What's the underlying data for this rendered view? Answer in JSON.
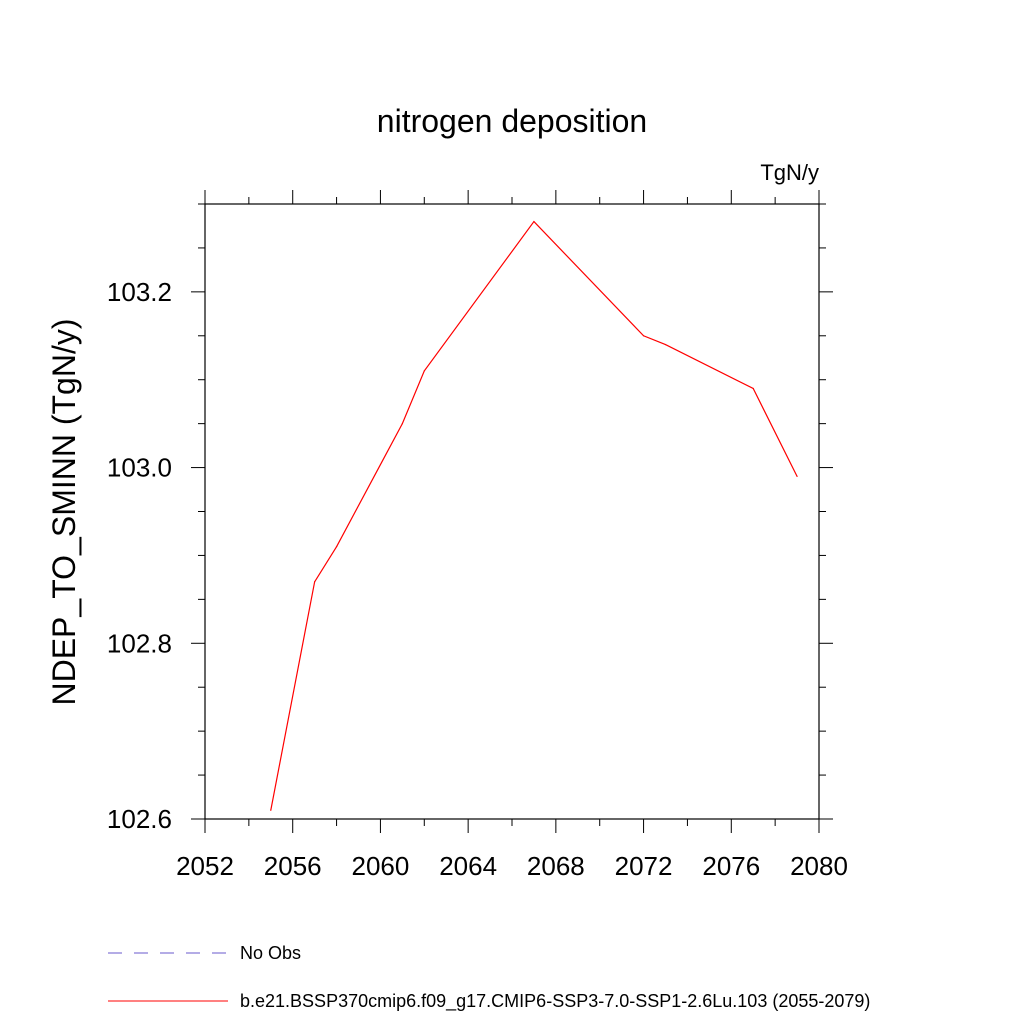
{
  "chart_data": {
    "type": "line",
    "title": "nitrogen deposition",
    "units_label": "TgN/y",
    "ylabel": "NDEP_TO_SMINN  (TgN/y)",
    "xlabel": "",
    "xlim": [
      2052,
      2080
    ],
    "ylim": [
      102.6,
      103.3
    ],
    "x_ticks": [
      "2052",
      "2056",
      "2060",
      "2064",
      "2068",
      "2072",
      "2076",
      "2080"
    ],
    "y_ticks": [
      "102.6",
      "102.8",
      "103.0",
      "103.2"
    ],
    "grid": false,
    "legend_position": "bottom",
    "series": [
      {
        "name": "b.e21.BSSP370cmip6.f09_g17.CMIP6-SSP3-7.0-SSP1-2.6Lu.103 (2055-2079)",
        "color": "#ff0000",
        "style": "solid",
        "x": [
          2055,
          2057,
          2058,
          2061,
          2062,
          2067,
          2072,
          2073,
          2077,
          2079
        ],
        "y": [
          102.61,
          102.87,
          102.91,
          103.05,
          103.11,
          103.28,
          103.15,
          103.14,
          103.09,
          102.99
        ]
      }
    ],
    "legend": [
      {
        "label": "No Obs",
        "color": "#6a5acd",
        "style": "dashed"
      },
      {
        "label": "b.e21.BSSP370cmip6.f09_g17.CMIP6-SSP3-7.0-SSP1-2.6Lu.103 (2055-2079)",
        "color": "#ff0000",
        "style": "solid"
      }
    ]
  }
}
